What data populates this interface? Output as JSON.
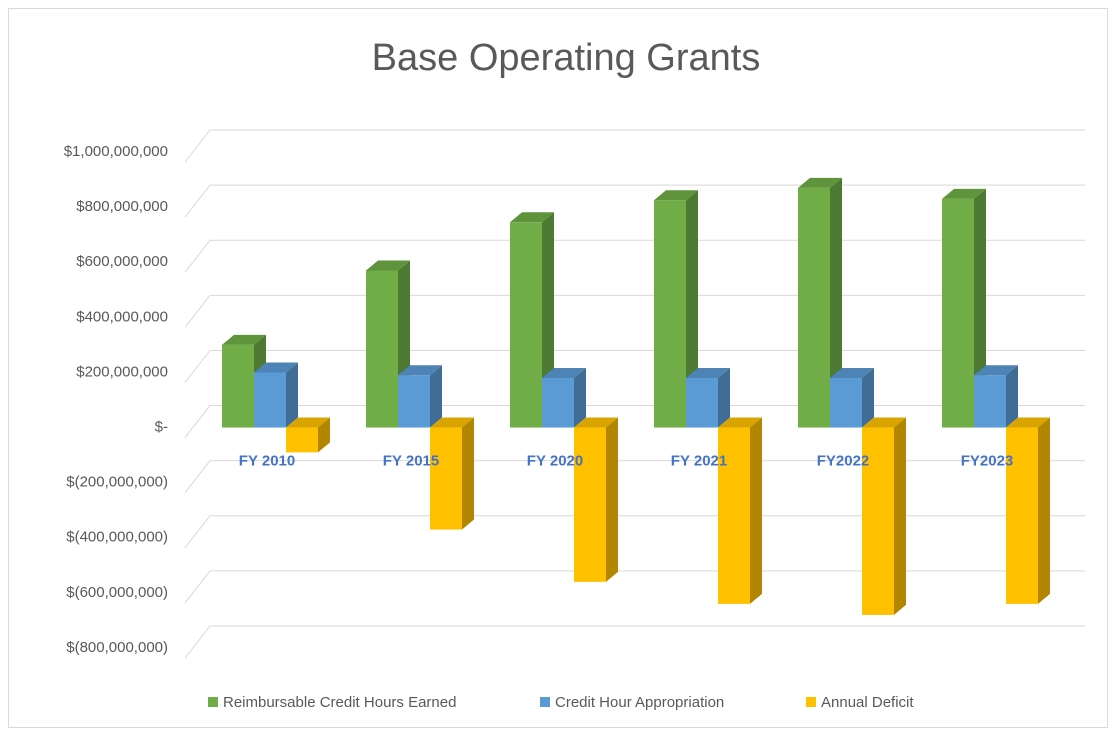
{
  "chart_data": {
    "type": "bar",
    "title": "Base Operating Grants",
    "categories": [
      "FY 2010",
      "FY 2015",
      "FY 2020",
      "FY 2021",
      "FY2022",
      "FY2023"
    ],
    "series": [
      {
        "name": "Reimbursable Credit Hours Earned",
        "color": "#70ad47",
        "values": [
          300000000,
          570000000,
          745000000,
          825000000,
          870000000,
          830000000
        ]
      },
      {
        "name": "Credit Hour Appropriation",
        "color": "#5b9bd5",
        "values": [
          200000000,
          190000000,
          180000000,
          180000000,
          180000000,
          190000000
        ]
      },
      {
        "name": "Annual Deficit",
        "color": "#ffc000",
        "values": [
          -90000000,
          -370000000,
          -560000000,
          -640000000,
          -680000000,
          -640000000
        ]
      }
    ],
    "ylim": [
      -800000000,
      1000000000
    ],
    "yticks": [
      {
        "value": 1000000000,
        "label": "$1,000,000,000"
      },
      {
        "value": 800000000,
        "label": "$800,000,000"
      },
      {
        "value": 600000000,
        "label": "$600,000,000"
      },
      {
        "value": 400000000,
        "label": "$400,000,000"
      },
      {
        "value": 200000000,
        "label": "$200,000,000"
      },
      {
        "value": 0,
        "label": "$-"
      },
      {
        "value": -200000000,
        "label": "$(200,000,000)"
      },
      {
        "value": -400000000,
        "label": "$(400,000,000)"
      },
      {
        "value": -600000000,
        "label": "$(600,000,000)"
      },
      {
        "value": -800000000,
        "label": "$(800,000,000)"
      }
    ],
    "grid": true,
    "legend": "bottom"
  }
}
